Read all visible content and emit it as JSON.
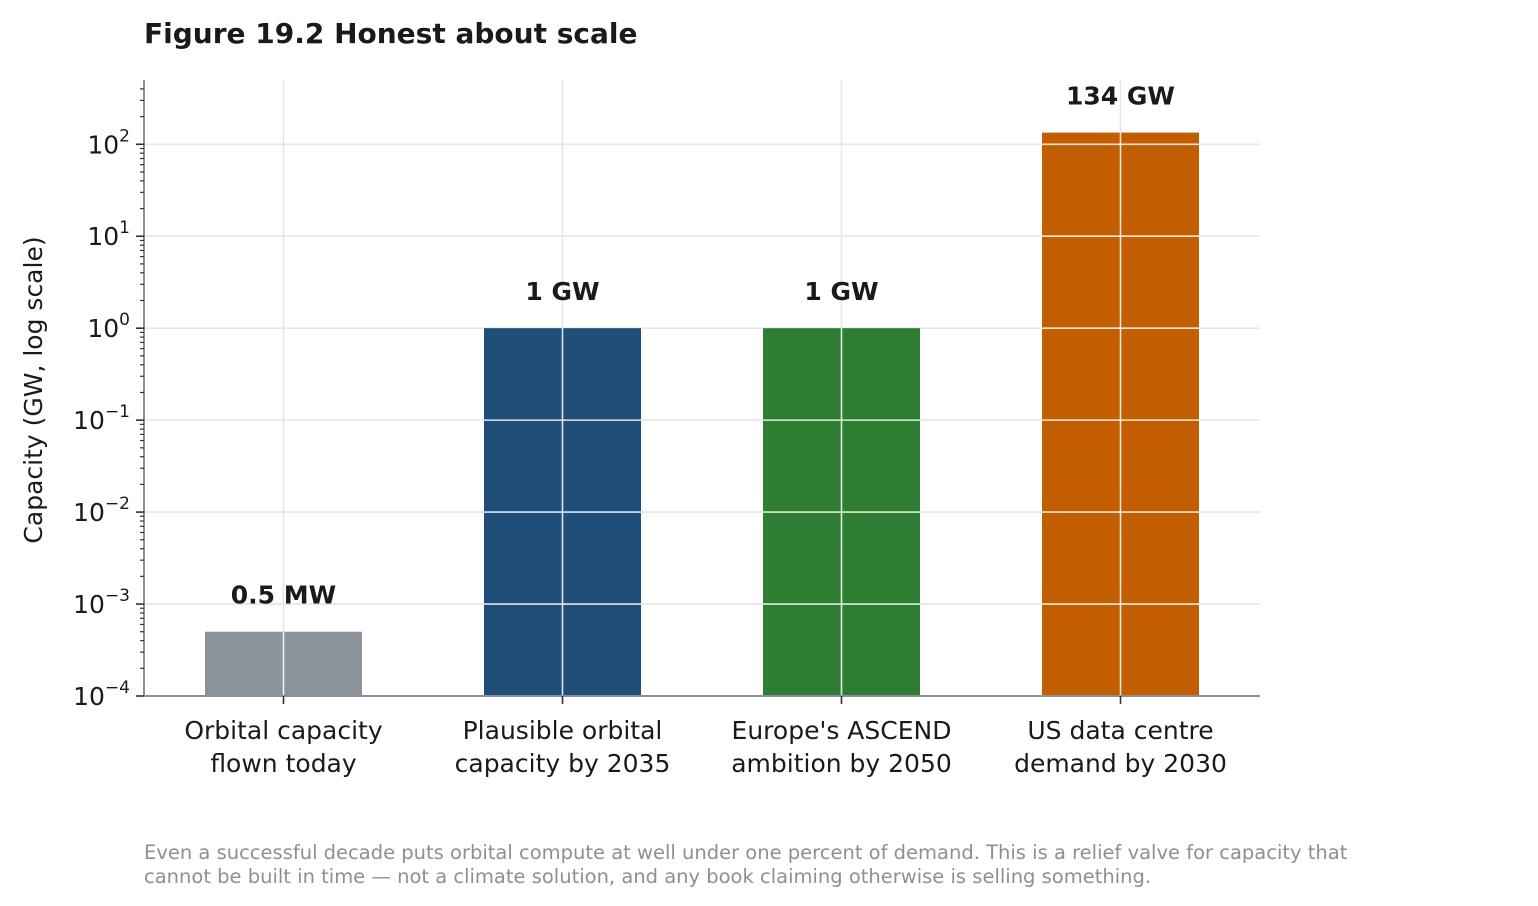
{
  "chart_data": {
    "type": "bar",
    "title": "Figure 19.2  Honest about scale",
    "ylabel": "Capacity (GW, log scale)",
    "xlabel": "",
    "yscale": "log",
    "ylim": [
      0.0001,
      500
    ],
    "grid": true,
    "y_ticks": [
      {
        "base": "10",
        "exp": "−4",
        "value": 0.0001
      },
      {
        "base": "10",
        "exp": "−3",
        "value": 0.001
      },
      {
        "base": "10",
        "exp": "−2",
        "value": 0.01
      },
      {
        "base": "10",
        "exp": "−1",
        "value": 0.1
      },
      {
        "base": "10",
        "exp": "0",
        "value": 1
      },
      {
        "base": "10",
        "exp": "1",
        "value": 10
      },
      {
        "base": "10",
        "exp": "2",
        "value": 100
      }
    ],
    "bars": [
      {
        "label_lines": [
          "Orbital capacity",
          "flown today"
        ],
        "value": 0.0005,
        "data_label": "0.5 MW",
        "color": "#8a929b"
      },
      {
        "label_lines": [
          "Plausible orbital",
          "capacity by 2035"
        ],
        "value": 1,
        "data_label": "1 GW",
        "color": "#1f4e79"
      },
      {
        "label_lines": [
          "Europe's ASCEND",
          "ambition by 2050"
        ],
        "value": 1,
        "data_label": "1 GW",
        "color": "#2e7d32"
      },
      {
        "label_lines": [
          "US data centre",
          "demand by 2030"
        ],
        "value": 134,
        "data_label": "134 GW",
        "color": "#c25e00"
      }
    ],
    "caption_lines": [
      "Even a successful decade puts orbital compute at well under one percent of demand. This is a relief valve for capacity that",
      "cannot be built in time — not a climate solution, and any book claiming otherwise is selling something."
    ]
  }
}
